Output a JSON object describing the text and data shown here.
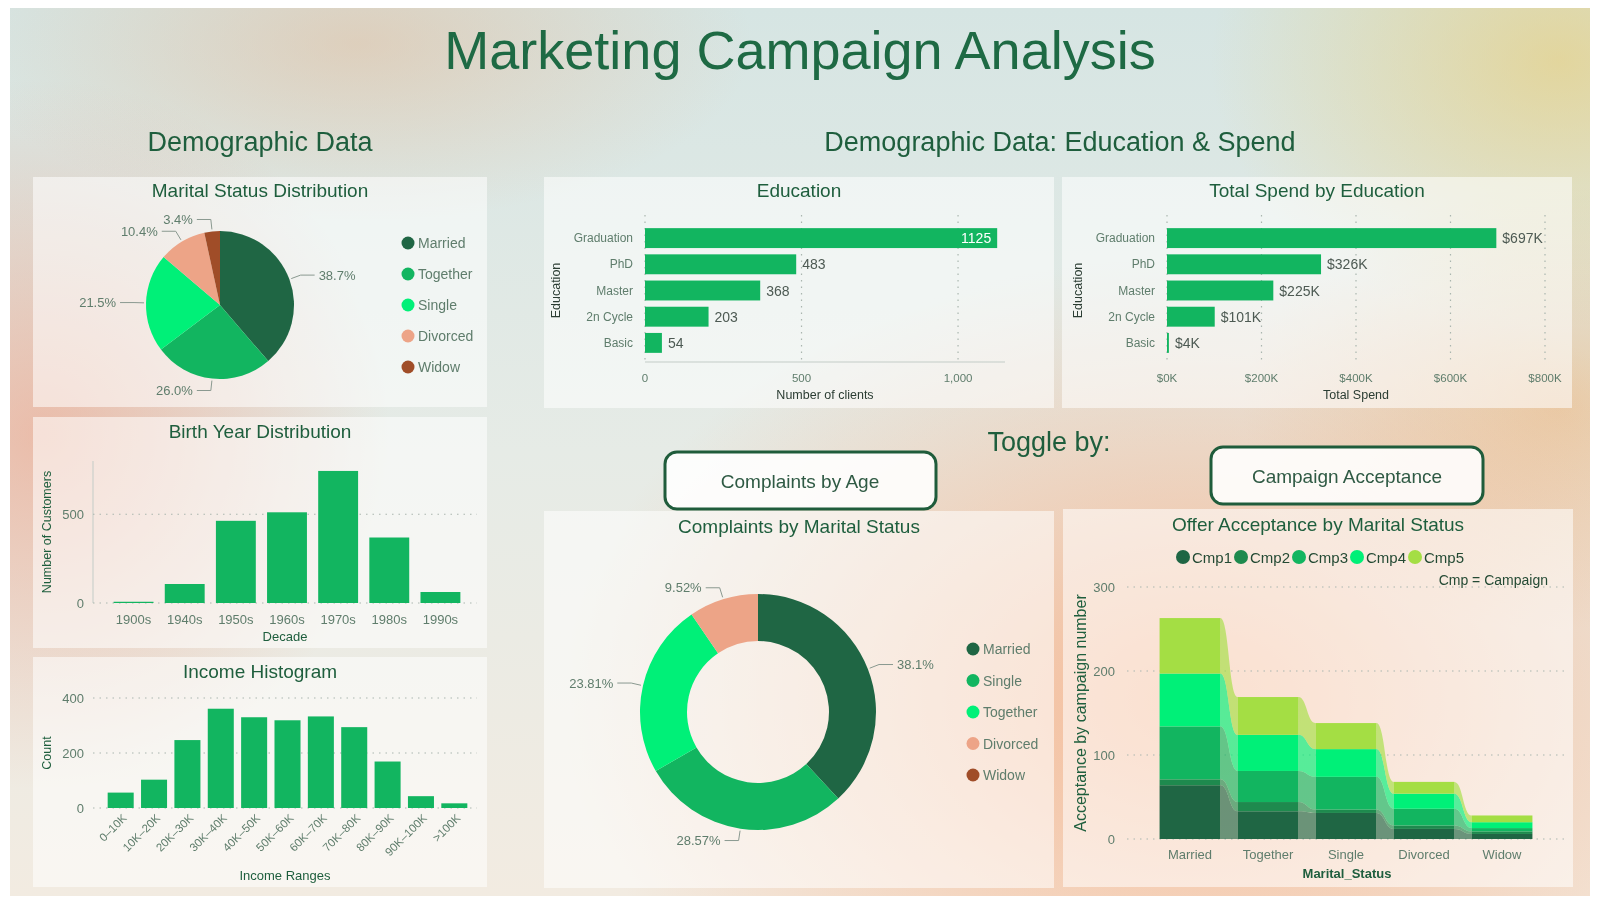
{
  "chart_data": [
    {
      "type": "other",
      "title": "Marketing Campaign Analysis",
      "annotations": [
        "Demographic Data",
        "Demographic Data: Education & Spend",
        "Toggle by:",
        "Complaints by Age",
        "Campaign Acceptance"
      ]
    },
    {
      "type": "pie",
      "title": "Marital Status Distribution",
      "categories": [
        "Married",
        "Together",
        "Single",
        "Divorced",
        "Widow"
      ],
      "values": [
        38.7,
        26.0,
        21.5,
        10.4,
        3.4
      ],
      "colors": [
        "#1f6644",
        "#12b560",
        "#00f078",
        "#eda487",
        "#a04d28"
      ],
      "value_labels": [
        "38.7%",
        "26.0%",
        "21.5%",
        "10.4%",
        "3.4%"
      ],
      "legend": "right"
    },
    {
      "type": "bar",
      "title": "Birth Year Distribution",
      "xlabel": "Decade",
      "ylabel": "Number of Customers",
      "categories": [
        "1900s",
        "1940s",
        "1950s",
        "1960s",
        "1970s",
        "1980s",
        "1990s"
      ],
      "values": [
        7,
        107,
        463,
        511,
        744,
        369,
        62
      ],
      "color": "#12b560",
      "ylim": [
        0,
        800
      ],
      "yticks": [
        0,
        500
      ],
      "grid": "y"
    },
    {
      "type": "bar",
      "title": "Income Histogram",
      "xlabel": "Income Ranges",
      "ylabel": "Count",
      "categories": [
        "0–10K",
        "10K–20K",
        "20K–30K",
        "30K–40K",
        "40K–50K",
        "50K–60K",
        "60K–70K",
        "70K–80K",
        "80K–90K",
        "90K–100K",
        ">100K"
      ],
      "values": [
        56,
        103,
        247,
        361,
        330,
        319,
        333,
        294,
        169,
        43,
        17
      ],
      "color": "#12b560",
      "ylim": [
        0,
        400
      ],
      "yticks": [
        0,
        200,
        400
      ],
      "grid": "y"
    },
    {
      "type": "bar",
      "orientation": "horizontal",
      "title": "Education",
      "xlabel": "Number of clients",
      "ylabel": "Education",
      "categories": [
        "Graduation",
        "PhD",
        "Master",
        "2n Cycle",
        "Basic"
      ],
      "values": [
        1125,
        483,
        368,
        203,
        54
      ],
      "color": "#12b560",
      "xlim": [
        0,
        1150
      ],
      "xticks": [
        0,
        500,
        {
          "value": 1000,
          "label": "1,000"
        }
      ],
      "grid": "x",
      "data_labels": true
    },
    {
      "type": "bar",
      "orientation": "horizontal",
      "title": "Total Spend by Education",
      "xlabel": "Total Spend",
      "ylabel": "Education",
      "categories": [
        "Graduation",
        "PhD",
        "Master",
        "2n Cycle",
        "Basic"
      ],
      "values": [
        697,
        326,
        225,
        101,
        4
      ],
      "value_labels": [
        "$697K",
        "$326K",
        "$225K",
        "$101K",
        "$4K"
      ],
      "color": "#12b560",
      "xlim": [
        0,
        800
      ],
      "xticks": [
        {
          "value": 0,
          "label": "$0K"
        },
        {
          "value": 200,
          "label": "$200K"
        },
        {
          "value": 400,
          "label": "$400K"
        },
        {
          "value": 600,
          "label": "$600K"
        },
        {
          "value": 800,
          "label": "$800K"
        }
      ],
      "grid": "x"
    },
    {
      "type": "donut",
      "title": "Complaints by Marital Status",
      "categories": [
        "Married",
        "Single",
        "Together",
        "Divorced",
        "Widow"
      ],
      "values": [
        38.1,
        28.57,
        23.81,
        9.52,
        0
      ],
      "colors": [
        "#1f6644",
        "#12b560",
        "#00f078",
        "#eda487",
        "#a04d28"
      ],
      "value_labels": [
        "38.1%",
        "28.57%",
        "23.81%",
        "9.52%",
        null
      ],
      "legend": "right"
    },
    {
      "type": "bar",
      "stacked": true,
      "title": "Offer Acceptance by Marital Status",
      "xlabel": "Marital_Status",
      "ylabel": "Acceptance by campaign number",
      "categories": [
        "Married",
        "Together",
        "Single",
        "Divorced",
        "Widow"
      ],
      "series": [
        {
          "name": "Cmp1",
          "color": "#1f6644",
          "values": [
            64,
            33,
            31,
            12,
            6
          ]
        },
        {
          "name": "Cmp2",
          "color": "#1e8a4e",
          "values": [
            7,
            11,
            4,
            4,
            3
          ]
        },
        {
          "name": "Cmp3",
          "color": "#12b560",
          "values": [
            63,
            37,
            39,
            20,
            4
          ]
        },
        {
          "name": "Cmp4",
          "color": "#00f078",
          "values": [
            63,
            43,
            33,
            18,
            7
          ]
        },
        {
          "name": "Cmp5",
          "color": "#a4de44",
          "values": [
            66,
            45,
            31,
            14,
            8
          ]
        }
      ],
      "ylim": [
        0,
        300
      ],
      "yticks": [
        0,
        100,
        200,
        300
      ],
      "grid": "y",
      "legend": "top",
      "annotations": [
        "Cmp = Campaign"
      ]
    }
  ]
}
